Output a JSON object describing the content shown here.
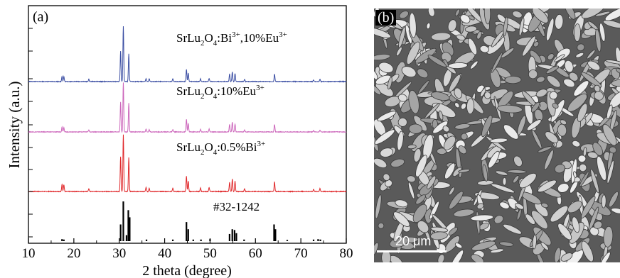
{
  "panel_a": {
    "label": "(a)",
    "xlabel": "2 theta (degree)",
    "ylabel": "Intensity (a.u.)",
    "x_ticks": [
      "10",
      "20",
      "30",
      "40",
      "50",
      "60",
      "70",
      "80"
    ]
  },
  "panel_b": {
    "label": "(b)",
    "scalebar": "20 μm"
  },
  "chart_data": {
    "type": "line",
    "xlabel": "2 theta (degree)",
    "ylabel": "Intensity (a.u.)",
    "xlim": [
      10,
      80
    ],
    "grid": false,
    "reference": {
      "label": "#32-1242",
      "color": "#000000",
      "sticks": [
        {
          "x": 17.4,
          "h": 0.05
        },
        {
          "x": 17.8,
          "h": 0.04
        },
        {
          "x": 30.3,
          "h": 0.42
        },
        {
          "x": 30.9,
          "h": 1.0
        },
        {
          "x": 31.6,
          "h": 0.15
        },
        {
          "x": 32.0,
          "h": 0.78
        },
        {
          "x": 32.3,
          "h": 0.6
        },
        {
          "x": 36.0,
          "h": 0.04
        },
        {
          "x": 41.8,
          "h": 0.04
        },
        {
          "x": 44.8,
          "h": 0.48
        },
        {
          "x": 45.2,
          "h": 0.3
        },
        {
          "x": 46.3,
          "h": 0.04
        },
        {
          "x": 48.0,
          "h": 0.04
        },
        {
          "x": 50.0,
          "h": 0.05
        },
        {
          "x": 54.3,
          "h": 0.18
        },
        {
          "x": 54.9,
          "h": 0.3
        },
        {
          "x": 55.4,
          "h": 0.28
        },
        {
          "x": 55.8,
          "h": 0.2
        },
        {
          "x": 57.5,
          "h": 0.04
        },
        {
          "x": 64.1,
          "h": 0.42
        },
        {
          "x": 64.4,
          "h": 0.3
        },
        {
          "x": 67.0,
          "h": 0.03
        },
        {
          "x": 72.8,
          "h": 0.04
        },
        {
          "x": 73.8,
          "h": 0.05
        },
        {
          "x": 74.3,
          "h": 0.04
        }
      ]
    },
    "series": [
      {
        "name": "SrLu2O4:0.5%Bi3+",
        "label_main": "SrLu",
        "label_sub1": "2",
        "label_mid": "O",
        "label_sub2": "4",
        "label_rest": ":0.5%Bi",
        "label_sup": "3+",
        "color": "#e0282b",
        "peaks": [
          {
            "x": 17.4,
            "h": 0.13
          },
          {
            "x": 17.8,
            "h": 0.12
          },
          {
            "x": 23.3,
            "h": 0.05
          },
          {
            "x": 30.3,
            "h": 0.62
          },
          {
            "x": 30.9,
            "h": 1.0
          },
          {
            "x": 32.1,
            "h": 0.6
          },
          {
            "x": 35.9,
            "h": 0.07
          },
          {
            "x": 36.6,
            "h": 0.06
          },
          {
            "x": 41.8,
            "h": 0.06
          },
          {
            "x": 44.8,
            "h": 0.27
          },
          {
            "x": 45.2,
            "h": 0.18
          },
          {
            "x": 47.9,
            "h": 0.06
          },
          {
            "x": 49.8,
            "h": 0.07
          },
          {
            "x": 54.3,
            "h": 0.16
          },
          {
            "x": 54.9,
            "h": 0.22
          },
          {
            "x": 55.5,
            "h": 0.18
          },
          {
            "x": 57.6,
            "h": 0.05
          },
          {
            "x": 64.2,
            "h": 0.17
          },
          {
            "x": 72.8,
            "h": 0.04
          },
          {
            "x": 74.2,
            "h": 0.05
          }
        ]
      },
      {
        "name": "SrLu2O4:10%Eu3+",
        "label_main": "SrLu",
        "label_sub1": "2",
        "label_mid": "O",
        "label_sub2": "4",
        "label_rest": ":10%Eu",
        "label_sup": "3+",
        "color": "#cc66bb",
        "peaks": [
          {
            "x": 17.4,
            "h": 0.1
          },
          {
            "x": 17.8,
            "h": 0.09
          },
          {
            "x": 23.3,
            "h": 0.04
          },
          {
            "x": 30.3,
            "h": 0.6
          },
          {
            "x": 30.9,
            "h": 1.0
          },
          {
            "x": 32.1,
            "h": 0.58
          },
          {
            "x": 35.9,
            "h": 0.06
          },
          {
            "x": 36.6,
            "h": 0.05
          },
          {
            "x": 41.8,
            "h": 0.05
          },
          {
            "x": 44.8,
            "h": 0.26
          },
          {
            "x": 45.2,
            "h": 0.17
          },
          {
            "x": 47.9,
            "h": 0.05
          },
          {
            "x": 49.8,
            "h": 0.06
          },
          {
            "x": 54.3,
            "h": 0.15
          },
          {
            "x": 54.9,
            "h": 0.2
          },
          {
            "x": 55.5,
            "h": 0.16
          },
          {
            "x": 57.6,
            "h": 0.04
          },
          {
            "x": 64.2,
            "h": 0.15
          },
          {
            "x": 72.8,
            "h": 0.03
          },
          {
            "x": 74.2,
            "h": 0.04
          }
        ]
      },
      {
        "name": "SrLu2O4:Bi3+,10%Eu3+",
        "label_main": "SrLu",
        "label_sub1": "2",
        "label_mid": "O",
        "label_sub2": "4",
        "label_rest": ":Bi",
        "label_sup": "3+",
        "label_rest2": ",10%Eu",
        "label_sup2": "3+",
        "color": "#3b4ea3",
        "peaks": [
          {
            "x": 17.4,
            "h": 0.1
          },
          {
            "x": 17.8,
            "h": 0.09
          },
          {
            "x": 23.3,
            "h": 0.04
          },
          {
            "x": 30.3,
            "h": 0.55
          },
          {
            "x": 30.9,
            "h": 1.0
          },
          {
            "x": 32.1,
            "h": 0.5
          },
          {
            "x": 35.9,
            "h": 0.05
          },
          {
            "x": 36.6,
            "h": 0.05
          },
          {
            "x": 41.8,
            "h": 0.05
          },
          {
            "x": 44.8,
            "h": 0.22
          },
          {
            "x": 45.2,
            "h": 0.15
          },
          {
            "x": 47.9,
            "h": 0.05
          },
          {
            "x": 49.8,
            "h": 0.06
          },
          {
            "x": 54.3,
            "h": 0.14
          },
          {
            "x": 54.9,
            "h": 0.18
          },
          {
            "x": 55.5,
            "h": 0.15
          },
          {
            "x": 57.6,
            "h": 0.04
          },
          {
            "x": 64.2,
            "h": 0.14
          },
          {
            "x": 72.8,
            "h": 0.03
          },
          {
            "x": 74.2,
            "h": 0.04
          }
        ]
      }
    ]
  }
}
